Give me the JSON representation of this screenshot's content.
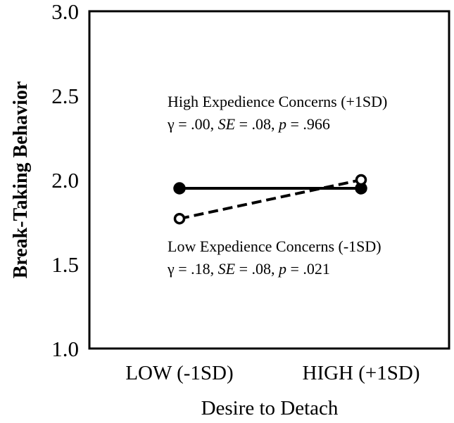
{
  "chart_data": {
    "type": "line",
    "xlabel": "Desire to Detach",
    "ylabel": "Break-Taking Behavior",
    "categories": [
      "LOW (-1SD)",
      "HIGH (+1SD)"
    ],
    "ylim": [
      1.0,
      3.0
    ],
    "yticks": [
      "1.0",
      "1.5",
      "2.0",
      "2.5",
      "3.0"
    ],
    "grid": false,
    "series": [
      {
        "name": "High Expedience Concerns (+1SD)",
        "values": [
          1.95,
          1.95
        ],
        "style": "solid",
        "marker": "filled-circle",
        "color": "#000000"
      },
      {
        "name": "Low Expedience Concerns (-1SD)",
        "values": [
          1.77,
          2.0
        ],
        "style": "dashed",
        "marker": "open-circle",
        "color": "#000000"
      }
    ],
    "annotations": [
      {
        "label": "High Expedience Concerns (+1SD)",
        "stat": {
          "gamma_text": "γ = .00, ",
          "se_label": "SE",
          "se_text": " = .08, ",
          "p_label": "p",
          "p_text": " = .966"
        }
      },
      {
        "label": "Low Expedience Concerns (-1SD)",
        "stat": {
          "gamma_text": "γ = .18, ",
          "se_label": "SE",
          "se_text": " = .08, ",
          "p_label": "p",
          "p_text": " = .021"
        }
      }
    ]
  }
}
